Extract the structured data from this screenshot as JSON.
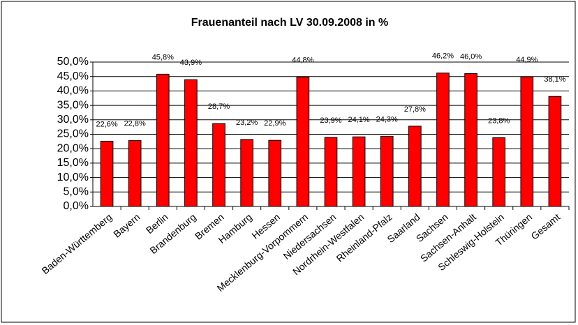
{
  "chart_data": {
    "type": "bar",
    "title": "Frauenanteil nach LV 30.09.2008 in %",
    "categories": [
      "Baden-Württemberg",
      "Bayern",
      "Berlin",
      "Brandenburg",
      "Bremen",
      "Hamburg",
      "Hessen",
      "Mecklenburg-Vorpommern",
      "Niedersachsen",
      "Nordrhein-Westfalen",
      "Rheinland-Pfalz",
      "Saarland",
      "Sachsen",
      "Sachsen-Anhalt",
      "Schleswig-Holstein",
      "Thüringen",
      "Gesamt"
    ],
    "values": [
      22.6,
      22.8,
      45.8,
      43.9,
      28.7,
      23.2,
      22.9,
      44.8,
      23.9,
      24.1,
      24.3,
      27.8,
      46.2,
      46.0,
      23.8,
      44.9,
      38.1
    ],
    "value_labels": [
      "22,6%",
      "22,8%",
      "45,8%",
      "43,9%",
      "28,7%",
      "23,2%",
      "22,9%",
      "44,8%",
      "23,9%",
      "24,1%",
      "24,3%",
      "27,8%",
      "46,2%",
      "46,0%",
      "23,8%",
      "44,9%",
      "38,1%"
    ],
    "color": "#ff0000",
    "ylim": [
      0,
      50
    ],
    "yticks": [
      {
        "value": 0,
        "label": "0,0%"
      },
      {
        "value": 5,
        "label": "5,0%"
      },
      {
        "value": 10,
        "label": "10,0%"
      },
      {
        "value": 15,
        "label": "15,0%"
      },
      {
        "value": 20,
        "label": "20,0%"
      },
      {
        "value": 25,
        "label": "25,0%"
      },
      {
        "value": 30,
        "label": "30,0%"
      },
      {
        "value": 35,
        "label": "35,0%"
      },
      {
        "value": 40,
        "label": "40,0%"
      },
      {
        "value": 45,
        "label": "45,0%"
      },
      {
        "value": 50,
        "label": "50,0%"
      }
    ],
    "grid": true
  }
}
